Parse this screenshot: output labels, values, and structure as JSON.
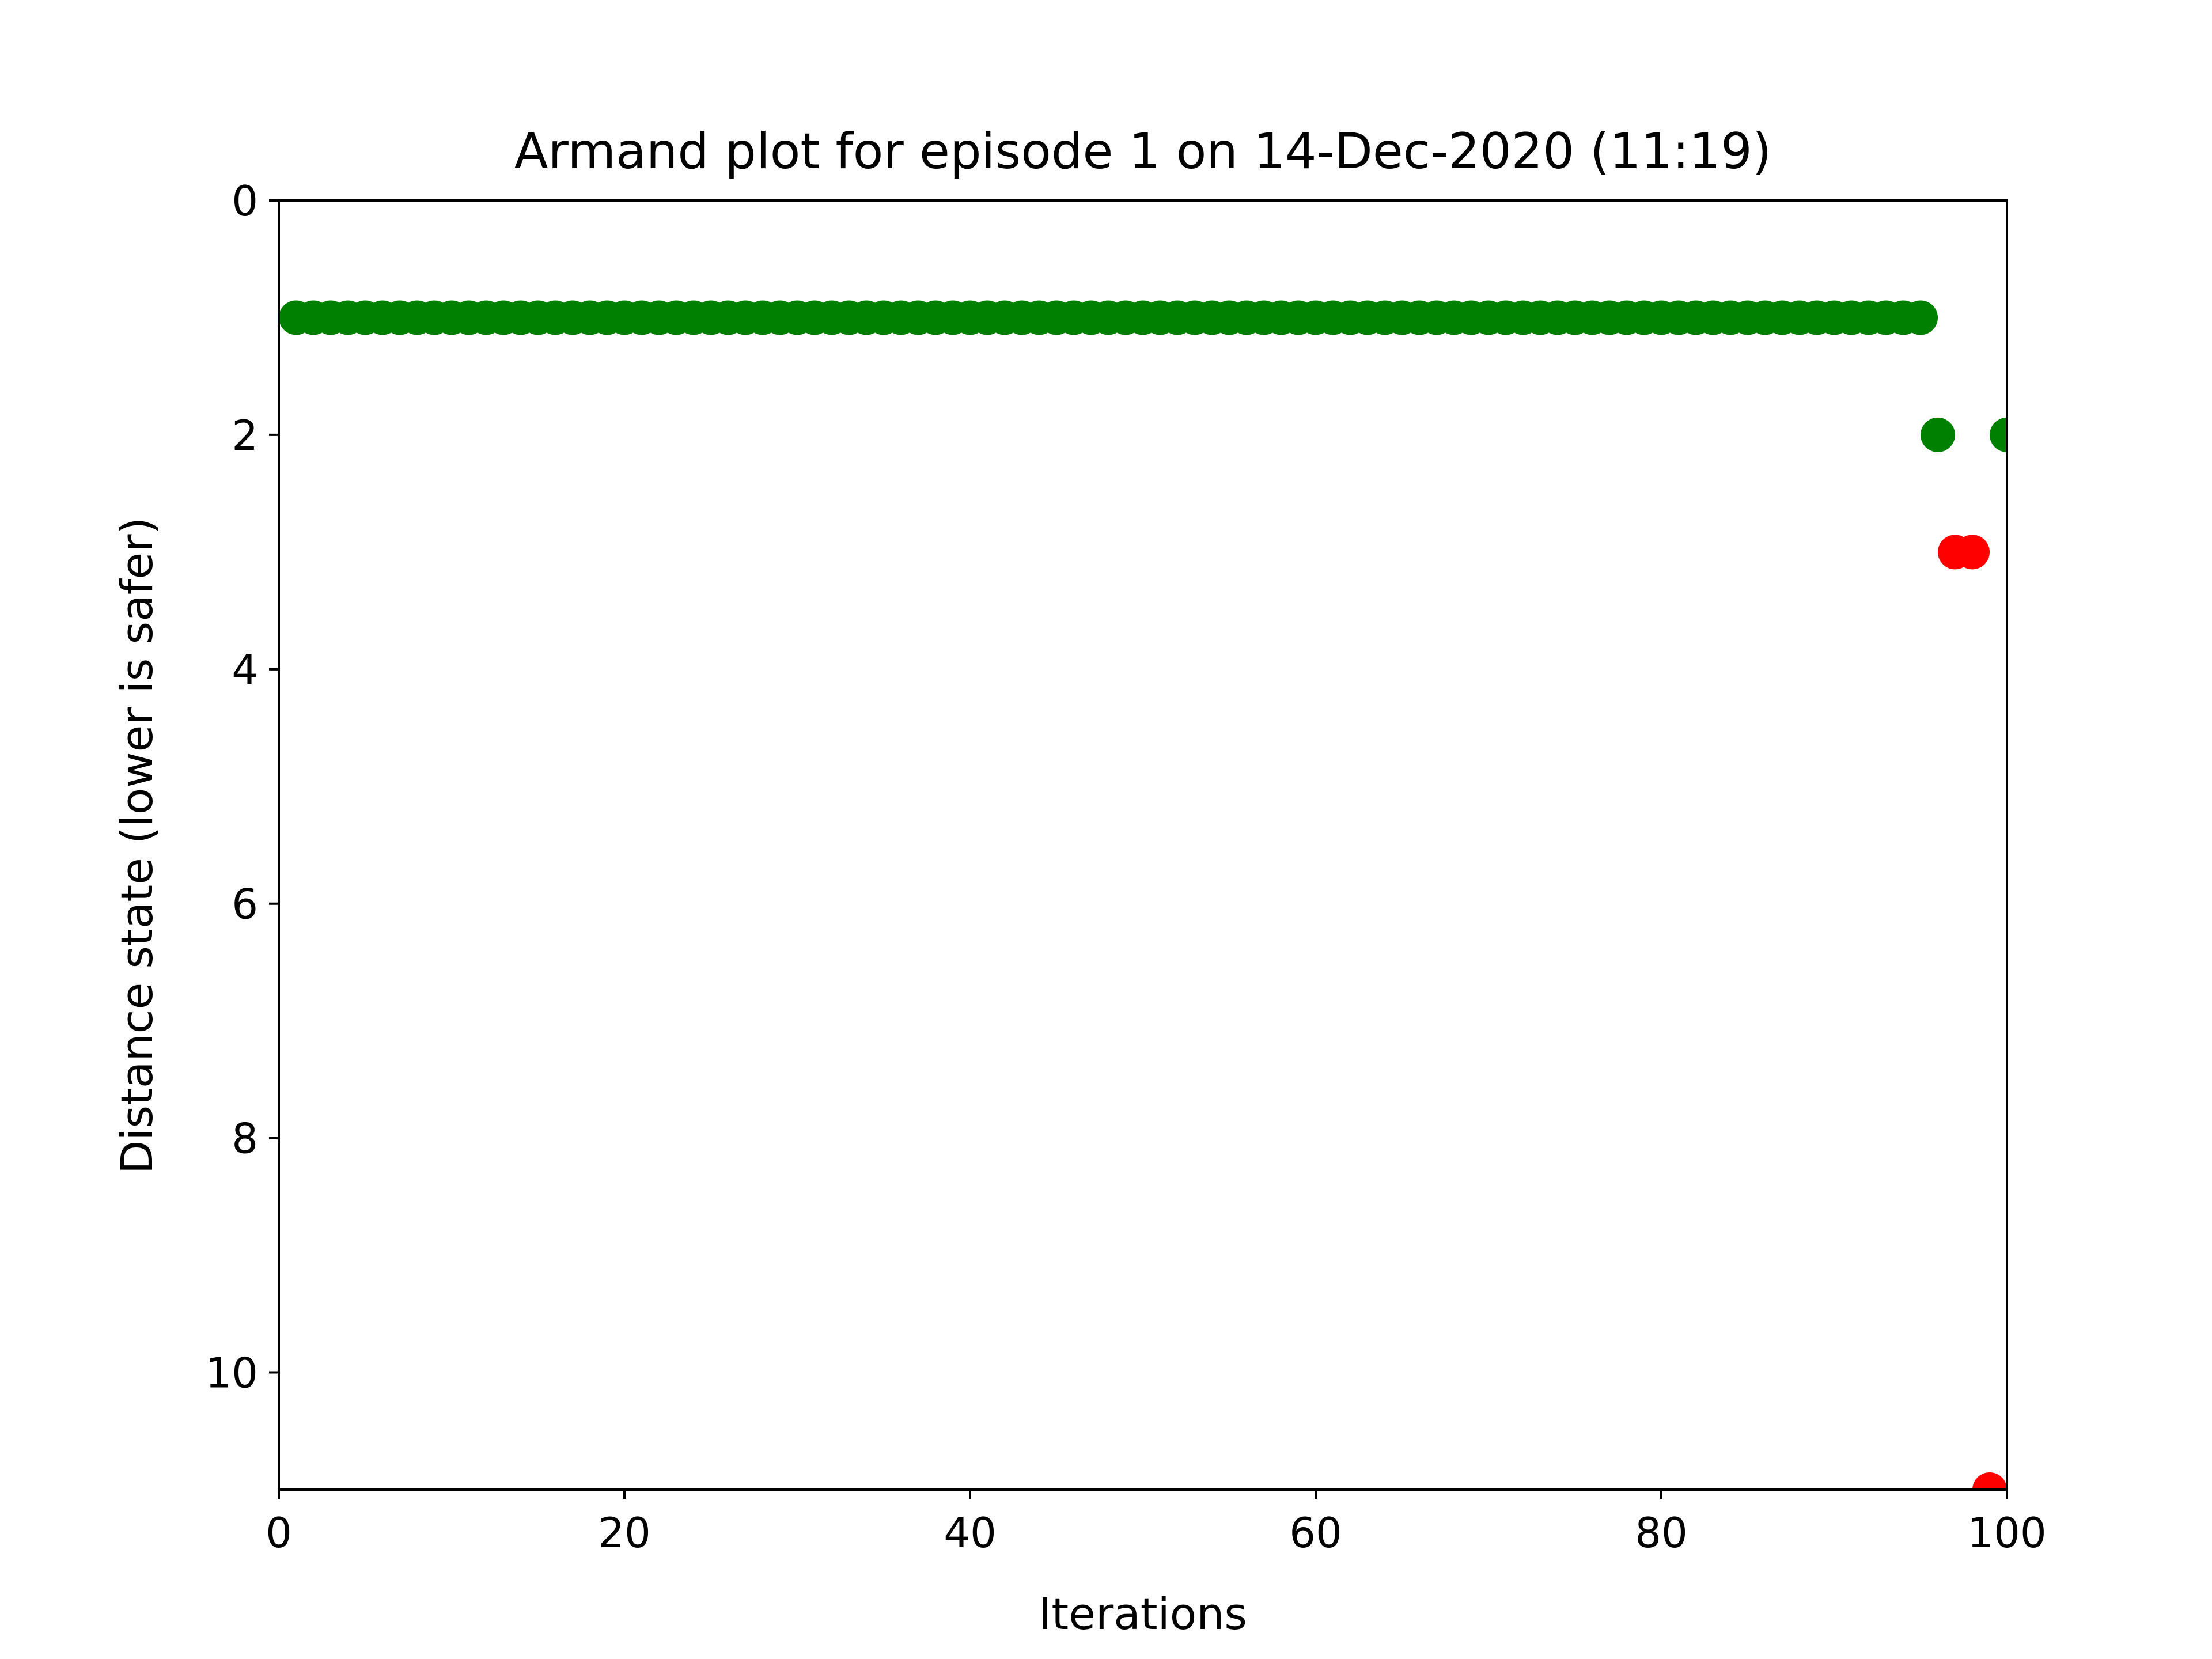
{
  "chart_data": {
    "type": "scatter",
    "title": "Armand plot for episode 1 on 14-Dec-2020 (11:19)",
    "xlabel": "Iterations",
    "ylabel": "Distance state (lower is safer)",
    "xlim": [
      0,
      100
    ],
    "ylim": [
      11,
      0
    ],
    "y_inverted": true,
    "grid": false,
    "x_ticks": [
      "0",
      "20",
      "40",
      "60",
      "80",
      "100"
    ],
    "y_ticks": [
      "0",
      "2",
      "4",
      "6",
      "8",
      "10"
    ],
    "series": [
      {
        "color": "#008000",
        "points": [
          [
            1,
            1
          ],
          [
            2,
            1
          ],
          [
            3,
            1
          ],
          [
            4,
            1
          ],
          [
            5,
            1
          ],
          [
            6,
            1
          ],
          [
            7,
            1
          ],
          [
            8,
            1
          ],
          [
            9,
            1
          ],
          [
            10,
            1
          ],
          [
            11,
            1
          ],
          [
            12,
            1
          ],
          [
            13,
            1
          ],
          [
            14,
            1
          ],
          [
            15,
            1
          ],
          [
            16,
            1
          ],
          [
            17,
            1
          ],
          [
            18,
            1
          ],
          [
            19,
            1
          ],
          [
            20,
            1
          ],
          [
            21,
            1
          ],
          [
            22,
            1
          ],
          [
            23,
            1
          ],
          [
            24,
            1
          ],
          [
            25,
            1
          ],
          [
            26,
            1
          ],
          [
            27,
            1
          ],
          [
            28,
            1
          ],
          [
            29,
            1
          ],
          [
            30,
            1
          ],
          [
            31,
            1
          ],
          [
            32,
            1
          ],
          [
            33,
            1
          ],
          [
            34,
            1
          ],
          [
            35,
            1
          ],
          [
            36,
            1
          ],
          [
            37,
            1
          ],
          [
            38,
            1
          ],
          [
            39,
            1
          ],
          [
            40,
            1
          ],
          [
            41,
            1
          ],
          [
            42,
            1
          ],
          [
            43,
            1
          ],
          [
            44,
            1
          ],
          [
            45,
            1
          ],
          [
            46,
            1
          ],
          [
            47,
            1
          ],
          [
            48,
            1
          ],
          [
            49,
            1
          ],
          [
            50,
            1
          ],
          [
            51,
            1
          ],
          [
            52,
            1
          ],
          [
            53,
            1
          ],
          [
            54,
            1
          ],
          [
            55,
            1
          ],
          [
            56,
            1
          ],
          [
            57,
            1
          ],
          [
            58,
            1
          ],
          [
            59,
            1
          ],
          [
            60,
            1
          ],
          [
            61,
            1
          ],
          [
            62,
            1
          ],
          [
            63,
            1
          ],
          [
            64,
            1
          ],
          [
            65,
            1
          ],
          [
            66,
            1
          ],
          [
            67,
            1
          ],
          [
            68,
            1
          ],
          [
            69,
            1
          ],
          [
            70,
            1
          ],
          [
            71,
            1
          ],
          [
            72,
            1
          ],
          [
            73,
            1
          ],
          [
            74,
            1
          ],
          [
            75,
            1
          ],
          [
            76,
            1
          ],
          [
            77,
            1
          ],
          [
            78,
            1
          ],
          [
            79,
            1
          ],
          [
            80,
            1
          ],
          [
            81,
            1
          ],
          [
            82,
            1
          ],
          [
            83,
            1
          ],
          [
            84,
            1
          ],
          [
            85,
            1
          ],
          [
            86,
            1
          ],
          [
            87,
            1
          ],
          [
            88,
            1
          ],
          [
            89,
            1
          ],
          [
            90,
            1
          ],
          [
            91,
            1
          ],
          [
            92,
            1
          ],
          [
            93,
            1
          ],
          [
            94,
            1
          ],
          [
            95,
            1
          ],
          [
            96,
            2
          ],
          [
            100,
            2
          ]
        ]
      },
      {
        "color": "#ff0000",
        "points": [
          [
            97,
            3
          ],
          [
            98,
            3
          ],
          [
            99,
            11
          ]
        ]
      }
    ]
  }
}
